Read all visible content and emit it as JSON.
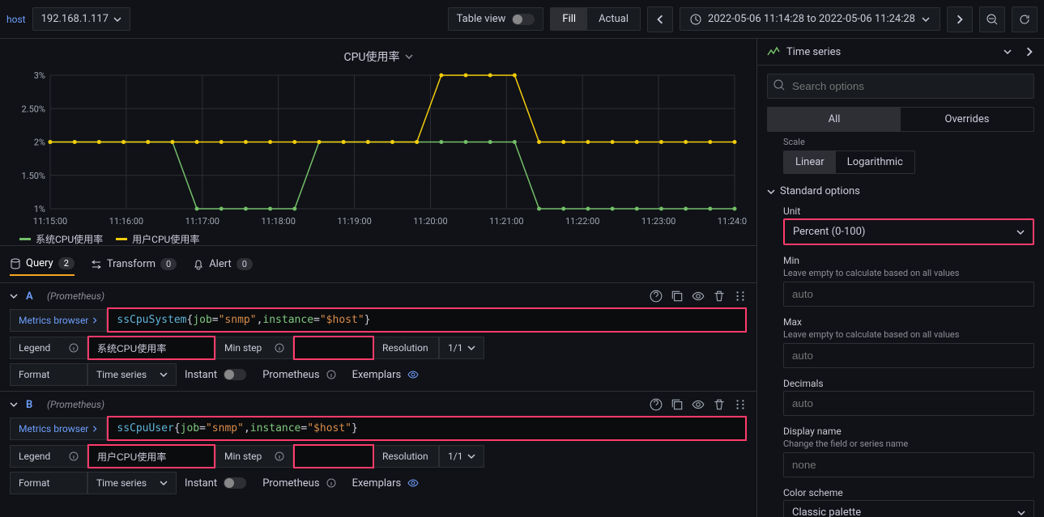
{
  "topbar": {
    "var_label": "host",
    "var_value": "192.168.1.117",
    "table_view": "Table view",
    "fill": "Fill",
    "actual": "Actual",
    "timerange": "2022-05-06 11:14:28 to 2022-05-06 11:24:28"
  },
  "chart": {
    "title": "CPU使用率",
    "y_ticks": [
      "1%",
      "1.50%",
      "2%",
      "2.50%",
      "3%"
    ],
    "x_ticks": [
      "11:15:00",
      "11:16:00",
      "11:17:00",
      "11:18:00",
      "11:19:00",
      "11:20:00",
      "11:21:00",
      "11:22:00",
      "11:23:00",
      "11:24:00"
    ],
    "series": [
      {
        "name": "系统CPU使用率",
        "color": "#73bf69",
        "values": [
          2,
          2,
          2,
          2,
          2,
          2,
          1,
          1,
          1,
          1,
          1,
          2,
          2,
          2,
          2,
          2,
          2,
          2,
          2,
          2,
          1,
          1,
          1,
          1,
          1,
          1,
          1,
          1,
          1
        ]
      },
      {
        "name": "用户CPU使用率",
        "color": "#f2cc0c",
        "values": [
          2,
          2,
          2,
          2,
          2,
          2,
          2,
          2,
          2,
          2,
          2,
          2,
          2,
          2,
          2,
          2,
          3,
          3,
          3,
          3,
          2,
          2,
          2,
          2,
          2,
          2,
          2,
          2,
          2
        ]
      }
    ],
    "ylim": [
      1,
      3
    ],
    "grid_color": "#2d2f34",
    "background": "#111217"
  },
  "tabs": {
    "query": "Query",
    "query_count": "2",
    "transform": "Transform",
    "transform_count": "0",
    "alert": "Alert",
    "alert_count": "0"
  },
  "queries": [
    {
      "id": "A",
      "datasource": "(Prometheus)",
      "metrics_browser": "Metrics browser",
      "expr_metric": "ssCpuSystem",
      "expr_kv": [
        [
          "job",
          "snmp"
        ],
        [
          "instance",
          "$host"
        ]
      ],
      "legend_label": "Legend",
      "legend_value": "系统CPU使用率",
      "minstep_label": "Min step",
      "minstep_value": "",
      "resolution_label": "Resolution",
      "resolution_value": "1/1",
      "format_label": "Format",
      "format_value": "Time series",
      "instant_label": "Instant",
      "prom_label": "Prometheus",
      "exemplars_label": "Exemplars"
    },
    {
      "id": "B",
      "datasource": "(Prometheus)",
      "metrics_browser": "Metrics browser",
      "expr_metric": "ssCpuUser",
      "expr_kv": [
        [
          "job",
          "snmp"
        ],
        [
          "instance",
          "$host"
        ]
      ],
      "legend_label": "Legend",
      "legend_value": "用户CPU使用率",
      "minstep_label": "Min step",
      "minstep_value": "",
      "resolution_label": "Resolution",
      "resolution_value": "1/1",
      "format_label": "Format",
      "format_value": "Time series",
      "instant_label": "Instant",
      "prom_label": "Prometheus",
      "exemplars_label": "Exemplars"
    }
  ],
  "right": {
    "viz_type": "Time series",
    "search_placeholder": "Search options",
    "tab_all": "All",
    "tab_overrides": "Overrides",
    "scale_label": "Scale",
    "scale_linear": "Linear",
    "scale_log": "Logarithmic",
    "std_options": "Standard options",
    "unit_label": "Unit",
    "unit_value": "Percent (0-100)",
    "min_label": "Min",
    "min_hint": "Leave empty to calculate based on all values",
    "min_value": "auto",
    "max_label": "Max",
    "max_hint": "Leave empty to calculate based on all values",
    "max_value": "auto",
    "decimals_label": "Decimals",
    "decimals_value": "auto",
    "display_name_label": "Display name",
    "display_name_hint": "Change the field or series name",
    "display_name_value": "none",
    "color_scheme_label": "Color scheme",
    "color_scheme_value": "Classic palette"
  }
}
